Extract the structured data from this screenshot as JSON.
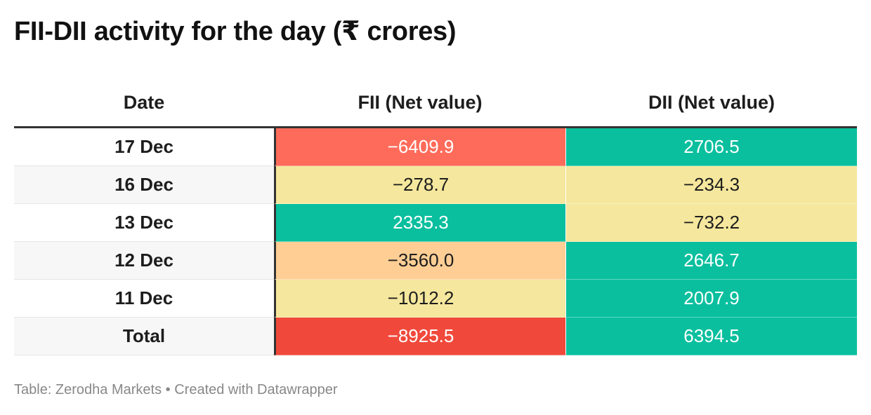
{
  "title": "FII-DII activity for the day (₹ crores)",
  "footer": "Table: Zerodha Markets • Created with Datawrapper",
  "colors": {
    "red_strong": "#f0493b",
    "red": "#ff6b5a",
    "orange": "#fece95",
    "yellow": "#f5e79d",
    "teal": "#0abf9e",
    "row_alt": "#f7f7f7",
    "row_plain": "#ffffff"
  },
  "chart_data": {
    "type": "table",
    "title": "FII-DII activity for the day (₹ crores)",
    "columns": [
      "Date",
      "FII (Net value)",
      "DII (Net value)"
    ],
    "rows": [
      {
        "date": "17 Dec",
        "fii": "−6409.9",
        "dii": "2706.5",
        "fii_value": -6409.9,
        "dii_value": 2706.5
      },
      {
        "date": "16 Dec",
        "fii": "−278.7",
        "dii": "−234.3",
        "fii_value": -278.7,
        "dii_value": -234.3
      },
      {
        "date": "13 Dec",
        "fii": "2335.3",
        "dii": "−732.2",
        "fii_value": 2335.3,
        "dii_value": -732.2
      },
      {
        "date": "12 Dec",
        "fii": "−3560.0",
        "dii": "2646.7",
        "fii_value": -3560.0,
        "dii_value": 2646.7
      },
      {
        "date": "11 Dec",
        "fii": "−1012.2",
        "dii": "2007.9",
        "fii_value": -1012.2,
        "dii_value": 2007.9
      },
      {
        "date": "Total",
        "fii": "−8925.5",
        "dii": "6394.5",
        "fii_value": -8925.5,
        "dii_value": 6394.5
      }
    ],
    "cell_colors": [
      [
        "#ff6b5a",
        "#0abf9e"
      ],
      [
        "#f5e79d",
        "#f5e79d"
      ],
      [
        "#0abf9e",
        "#f5e79d"
      ],
      [
        "#fece95",
        "#0abf9e"
      ],
      [
        "#f5e79d",
        "#0abf9e"
      ],
      [
        "#f0493b",
        "#0abf9e"
      ]
    ],
    "source": "Table: Zerodha Markets • Created with Datawrapper"
  }
}
